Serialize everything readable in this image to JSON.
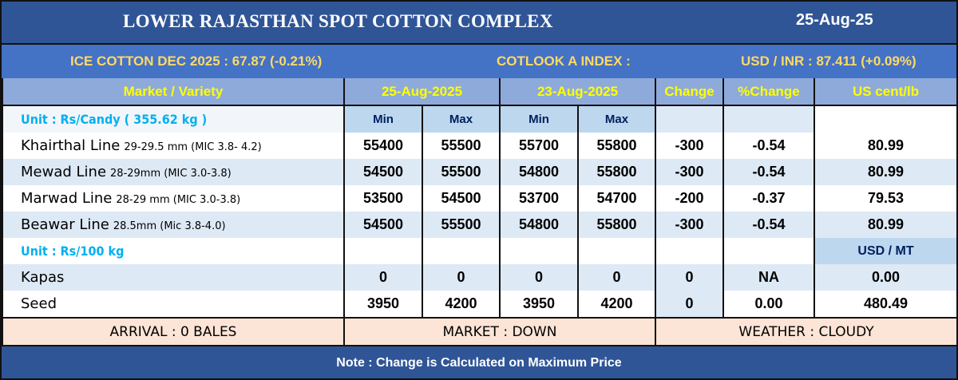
{
  "title": "LOWER RAJASTHAN SPOT COTTON COMPLEX",
  "date": "25-Aug-25",
  "ticker": {
    "ice": "ICE COTTON DEC 2025 : 67.87 (-0.21%)",
    "cotlook": "COTLOOK A INDEX :",
    "usdinr": "USD / INR : 87.411 (+0.09%)"
  },
  "headers": {
    "market": "Market / Variety",
    "date1": "25-Aug-2025",
    "date2": "23-Aug-2025",
    "change": "Change",
    "pct": "%Change",
    "us": "US cent/lb",
    "min": "Min",
    "max": "Max"
  },
  "unit1": "Unit : Rs/Candy ( 355.62 kg )",
  "unit2": "Unit : Rs/100 kg",
  "usd_mt": "USD / MT",
  "lint": [
    {
      "name": "Khairthal Line",
      "spec": "29-29.5 mm (MIC 3.8- 4.2)",
      "min1": "55400",
      "max1": "55500",
      "min2": "55700",
      "max2": "55800",
      "change": "-300",
      "pct": "-0.54",
      "us": "80.99"
    },
    {
      "name": "Mewad Line",
      "spec": "28-29mm (MIC 3.0-3.8)",
      "min1": "54500",
      "max1": "55500",
      "min2": "54800",
      "max2": "55800",
      "change": "-300",
      "pct": "-0.54",
      "us": "80.99"
    },
    {
      "name": "Marwad Line",
      "spec": "28-29 mm (MIC 3.0-3.8)",
      "min1": "53500",
      "max1": "54500",
      "min2": "53700",
      "max2": "54700",
      "change": "-200",
      "pct": "-0.37",
      "us": "79.53"
    },
    {
      "name": "Beawar Line",
      "spec": "28.5mm (Mic 3.8-4.0)",
      "min1": "54500",
      "max1": "55500",
      "min2": "54800",
      "max2": "55800",
      "change": "-300",
      "pct": "-0.54",
      "us": "80.99"
    }
  ],
  "other": [
    {
      "name": "Kapas",
      "min1": "0",
      "max1": "0",
      "min2": "0",
      "max2": "0",
      "change": "0",
      "pct": "NA",
      "us": "0.00"
    },
    {
      "name": "Seed",
      "min1": "3950",
      "max1": "4200",
      "min2": "3950",
      "max2": "4200",
      "change": "0",
      "pct": "0.00",
      "us": "480.49"
    }
  ],
  "footer": {
    "arrival": "ARRIVAL : 0 BALES",
    "market": "MARKET : DOWN",
    "weather": "WEATHER : CLOUDY"
  },
  "note": "Note : Change is Calculated on Maximum Price"
}
